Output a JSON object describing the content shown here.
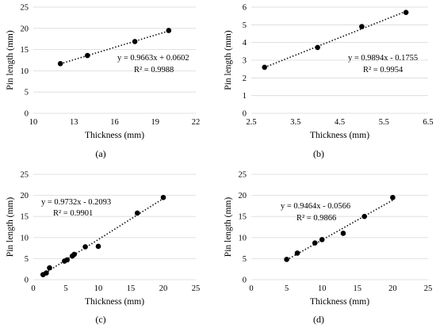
{
  "chart_data": [
    {
      "type": "scatter",
      "panel_label": "(a)",
      "xlabel": "Thickness (mm)",
      "ylabel": "Pin length  (mm)",
      "xlim": [
        10,
        22
      ],
      "xticks": [
        10,
        13,
        16,
        19,
        22
      ],
      "ylim": [
        0,
        25
      ],
      "yticks": [
        0,
        5,
        10,
        15,
        20,
        25
      ],
      "grid": "horizontal",
      "series": [
        {
          "x": [
            12,
            14,
            17.5,
            20
          ],
          "y": [
            11.7,
            13.6,
            16.9,
            19.5
          ]
        }
      ],
      "trendline": {
        "slope": 0.9663,
        "intercept": 0.0602,
        "x_range": [
          12,
          20
        ]
      },
      "equation": "y = 0.9663x + 0.0602",
      "r2": "R² = 0.9988"
    },
    {
      "type": "scatter",
      "panel_label": "(b)",
      "xlabel": "Thickness (mm)",
      "ylabel": "Pin length (mm)",
      "xlim": [
        2.5,
        6.5
      ],
      "xticks": [
        2.5,
        3.5,
        4.5,
        5.5,
        6.5
      ],
      "ylim": [
        0,
        6
      ],
      "yticks": [
        0,
        1,
        2,
        3,
        4,
        5,
        6
      ],
      "grid": "horizontal",
      "series": [
        {
          "x": [
            2.8,
            4,
            5,
            6
          ],
          "y": [
            2.6,
            3.72,
            4.9,
            5.7
          ]
        }
      ],
      "trendline": {
        "slope": 0.9894,
        "intercept": -0.1755,
        "x_range": [
          2.8,
          6
        ]
      },
      "equation": "y = 0.9894x - 0.1755",
      "r2": "R² = 0.9954"
    },
    {
      "type": "scatter",
      "panel_label": "(c)",
      "xlabel": "Thickness (mm)",
      "ylabel": "Pin length (mm)",
      "xlim": [
        0,
        25
      ],
      "xticks": [
        0,
        5,
        10,
        15,
        20,
        25
      ],
      "ylim": [
        0,
        25
      ],
      "yticks": [
        0,
        5,
        10,
        15,
        20,
        25
      ],
      "grid": "horizontal",
      "series": [
        {
          "x": [
            1.5,
            2,
            2.5,
            4.8,
            5.2,
            6,
            6.3,
            8,
            10,
            16,
            20
          ],
          "y": [
            1.2,
            1.6,
            2.8,
            4.4,
            4.7,
            5.6,
            6.0,
            7.8,
            7.9,
            15.8,
            19.5
          ]
        }
      ],
      "trendline": {
        "slope": 0.9732,
        "intercept": -0.2093,
        "x_range": [
          1.5,
          20
        ]
      },
      "equation": "y = 0.9732x - 0.2093",
      "r2": "R² = 0.9901"
    },
    {
      "type": "scatter",
      "panel_label": "(d)",
      "xlabel": "Thickness (mm)",
      "ylabel": "Pin length (mm)",
      "xlim": [
        0,
        25
      ],
      "xticks": [
        0,
        5,
        10,
        15,
        20,
        25
      ],
      "ylim": [
        0,
        25
      ],
      "yticks": [
        0,
        5,
        10,
        15,
        20,
        25
      ],
      "grid": "horizontal",
      "series": [
        {
          "x": [
            5,
            6.5,
            9,
            10,
            13,
            16,
            20
          ],
          "y": [
            4.8,
            6.3,
            8.7,
            9.5,
            11.0,
            15.0,
            19.5
          ]
        }
      ],
      "trendline": {
        "slope": 0.9464,
        "intercept": -0.0566,
        "x_range": [
          5,
          20
        ]
      },
      "equation": "y = 0.9464x - 0.0566",
      "r2": "R² = 0.9866"
    }
  ]
}
